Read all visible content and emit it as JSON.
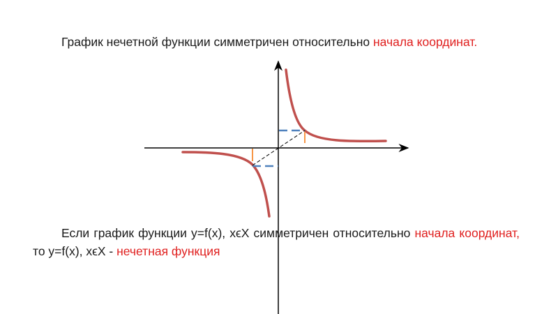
{
  "paragraph1": {
    "text": "График нечетной функции симметричен относительно ",
    "highlight": "начала координат."
  },
  "paragraph2": {
    "text1": "Если график функции y=f(x), xϵX симметричен относительно ",
    "highlight1": "начала координат,",
    "text2": " то y=f(x), xϵX - ",
    "highlight2": "нечетная функция"
  },
  "colors": {
    "highlight": "#e0201f",
    "curve": "#c0504d",
    "blue_dash": "#4f81bd",
    "orange_mark": "#f79646"
  }
}
